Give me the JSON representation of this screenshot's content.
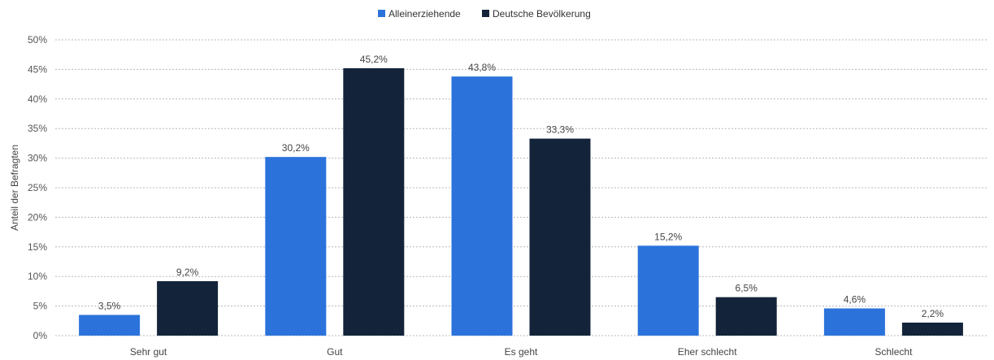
{
  "chart_data": {
    "type": "bar",
    "title": "",
    "xlabel": "",
    "ylabel": "Anteil der Befragten",
    "categories": [
      "Sehr gut",
      "Gut",
      "Es geht",
      "Eher schlecht",
      "Schlecht"
    ],
    "series": [
      {
        "name": "Alleinerziehende",
        "color": "#2b73db",
        "values": [
          3.5,
          30.2,
          43.8,
          15.2,
          4.6
        ],
        "labels": [
          "3,5%",
          "30,2%",
          "43,8%",
          "15,2%",
          "4,6%"
        ]
      },
      {
        "name": "Deutsche Bevölkerung",
        "color": "#13243a",
        "values": [
          9.2,
          45.2,
          33.3,
          6.5,
          2.2
        ],
        "labels": [
          "9,2%",
          "45,2%",
          "33,3%",
          "6,5%",
          "2,2%"
        ]
      }
    ],
    "ylim": [
      0,
      50
    ],
    "yticks": [
      0,
      5,
      10,
      15,
      20,
      25,
      30,
      35,
      40,
      45,
      50
    ],
    "ytick_labels": [
      "0%",
      "5%",
      "10%",
      "15%",
      "20%",
      "25%",
      "30%",
      "35%",
      "40%",
      "45%",
      "50%"
    ],
    "grid": true,
    "legend_position": "top-center"
  }
}
